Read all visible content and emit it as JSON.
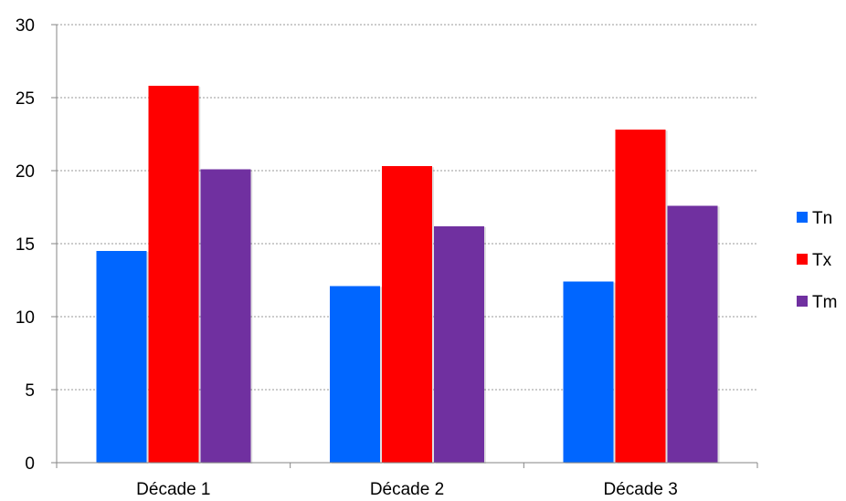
{
  "chart_data": {
    "type": "bar",
    "title": "",
    "xlabel": "",
    "ylabel": "",
    "categories": [
      "Décade 1",
      "Décade 2",
      "Décade 3"
    ],
    "series": [
      {
        "name": "Tn",
        "color": "#0066ff",
        "values": [
          14.5,
          12.1,
          12.4
        ]
      },
      {
        "name": "Tx",
        "color": "#ff0000",
        "values": [
          25.8,
          20.3,
          22.8
        ]
      },
      {
        "name": "Tm",
        "color": "#7030a0",
        "values": [
          20.1,
          16.2,
          17.6
        ]
      }
    ],
    "ylim": [
      0,
      30
    ],
    "yticks": [
      0,
      5,
      10,
      15,
      20,
      25,
      30
    ],
    "grid": true,
    "legend_position": "right"
  }
}
